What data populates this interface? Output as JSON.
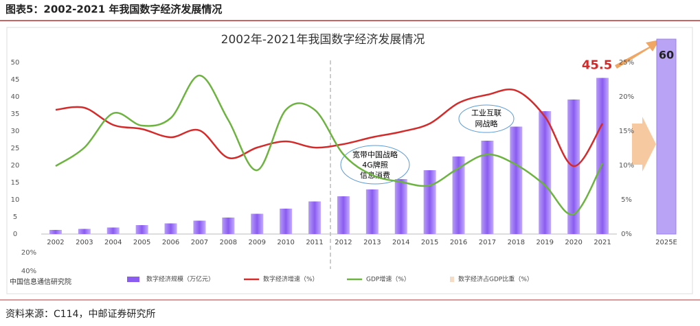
{
  "header": "图表5：2002-2021 年我国数字经济发展情况",
  "source": "资料来源：C114，中邮证券研究所",
  "chart_data": {
    "type": "bar",
    "title": "2002年-2021年我国数字经济发展情况",
    "org": "中国信息通信研究院",
    "categories": [
      "2002",
      "2003",
      "2004",
      "2005",
      "2006",
      "2007",
      "2008",
      "2009",
      "2010",
      "2011",
      "2012",
      "2013",
      "2014",
      "2015",
      "2016",
      "2017",
      "2018",
      "2019",
      "2020",
      "2021"
    ],
    "series": [
      {
        "name": "数字经济规模（万亿元）",
        "type": "bar",
        "color": "#8a5cf0",
        "axis": "y",
        "values": [
          1.2,
          1.5,
          1.9,
          2.6,
          3.1,
          3.9,
          4.8,
          5.9,
          7.4,
          9.5,
          11,
          13,
          16,
          18.6,
          22.6,
          27.2,
          31.3,
          35.8,
          39.2,
          45.5
        ],
        "value_labels": [
          null,
          null,
          null,
          null,
          null,
          null,
          null,
          null,
          null,
          null,
          null,
          null,
          null,
          null,
          null,
          null,
          null,
          null,
          null,
          "45.5"
        ]
      },
      {
        "name": "数字经济增速（%）",
        "type": "line",
        "color": "#d42a2a",
        "axis": "y2",
        "values": [
          18.1,
          18.4,
          15.9,
          15.3,
          14.1,
          15.1,
          11.1,
          12.6,
          13.5,
          12.6,
          13.1,
          14.1,
          14.9,
          16.1,
          19.1,
          20.3,
          20.9,
          17.1,
          9.9,
          16.1
        ]
      },
      {
        "name": "GDP增速（%）",
        "type": "line",
        "color": "#6cb33f",
        "axis": "y2",
        "values": [
          9.9,
          12.6,
          17.6,
          15.8,
          16.9,
          23.1,
          16.6,
          9.3,
          18.1,
          18.1,
          11.6,
          8.6,
          7.6,
          7.1,
          9.6,
          11.6,
          10.1,
          7.1,
          2.9,
          10.3
        ]
      }
    ],
    "share_legend": "数字经济占GDP比重（%）",
    "share_ticks": [
      {
        "value": 20,
        "label": "20%"
      },
      {
        "value": 40,
        "label": "40%"
      }
    ],
    "forecast": {
      "category": "2025E",
      "value": 60
    },
    "annotations": [
      "宽带中国战略",
      "4G牌照",
      "信息消费",
      "工业互联",
      "网战略"
    ],
    "ylim": [
      0,
      50
    ],
    "yticks": [
      0,
      5,
      10,
      15,
      20,
      25,
      30,
      35,
      40,
      45,
      50
    ],
    "y2lim": [
      0,
      25
    ],
    "y2ticks": [
      {
        "value": 0,
        "label": "0%"
      },
      {
        "value": 5,
        "label": "5%"
      },
      {
        "value": 10,
        "label": "10%"
      },
      {
        "value": 15,
        "label": "15%"
      },
      {
        "value": 20,
        "label": "20%"
      },
      {
        "value": 25,
        "label": "25%"
      }
    ]
  }
}
